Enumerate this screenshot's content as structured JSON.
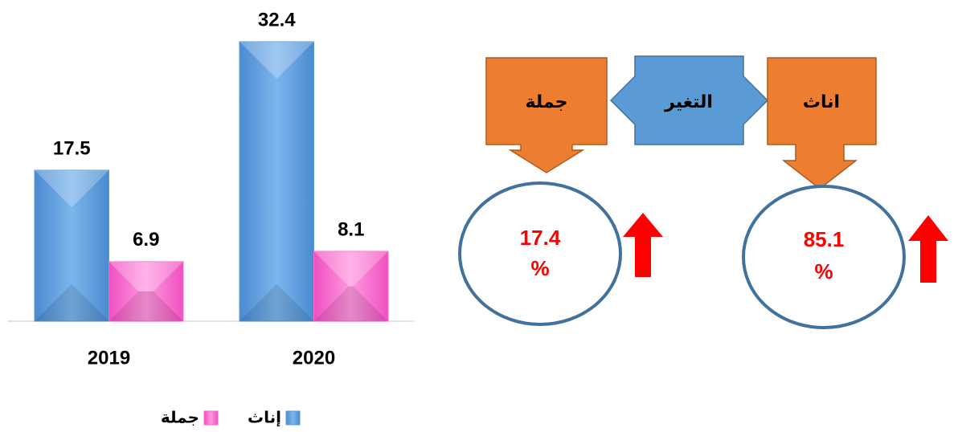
{
  "chart_data": {
    "type": "bar",
    "categories": [
      "2019",
      "2020"
    ],
    "series": [
      {
        "name": "إناث",
        "color": "#5b9bd5",
        "values": [
          17.5,
          32.4
        ]
      },
      {
        "name": "جملة",
        "color": "#ff66cc",
        "values": [
          6.9,
          8.1
        ]
      }
    ],
    "ylim": [
      0,
      35
    ]
  },
  "diagram": {
    "boxes": [
      {
        "label": "جملة"
      },
      {
        "label": "التغير"
      },
      {
        "label": "اناث"
      }
    ],
    "changes": [
      {
        "value": 17.4,
        "unit": "%"
      },
      {
        "value": 85.1,
        "unit": "%"
      }
    ]
  }
}
